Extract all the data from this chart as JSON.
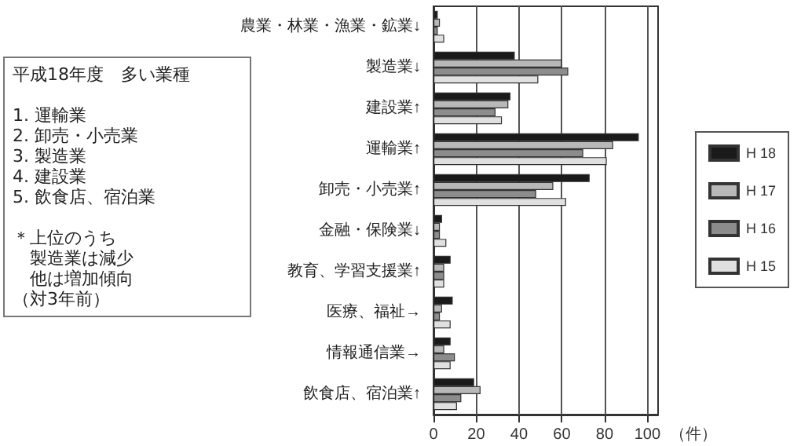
{
  "chart_data": {
    "type": "bar",
    "orientation": "horizontal",
    "xlabel": "（件）",
    "categories": [
      "農業・林業・漁業・鉱業↓",
      "製造業↓",
      "建設業↑",
      "運輸業↑",
      "卸売・小売業↑",
      "金融・保険業↓",
      "教育、学習支援業↑",
      "医療、福祉→",
      "情報通信業→",
      "飲食店、宿泊業↑"
    ],
    "series": [
      {
        "name": "H 18",
        "color": "#1a1a1a",
        "values": [
          2,
          38,
          36,
          96,
          73,
          4,
          8,
          9,
          8,
          19
        ]
      },
      {
        "name": "H 17",
        "color": "#b8b8b8",
        "values": [
          3,
          60,
          35,
          84,
          56,
          3,
          5,
          4,
          5,
          22
        ]
      },
      {
        "name": "H 16",
        "color": "#8c8c8c",
        "values": [
          2,
          63,
          29,
          70,
          48,
          3,
          5,
          3,
          10,
          13
        ]
      },
      {
        "name": "H 15",
        "color": "#e0e0e0",
        "values": [
          5,
          49,
          32,
          81,
          62,
          6,
          5,
          8,
          8,
          11
        ]
      }
    ],
    "xlim": [
      0,
      105
    ],
    "xticks": [
      0,
      20,
      40,
      60,
      80,
      100
    ],
    "grid": "x",
    "legend": "right",
    "annotations": [
      "平成18年度　多い業種",
      "1. 運輸業",
      "2. 卸売・小売業",
      "3. 製造業",
      "4. 建設業",
      "5. 飲食店、宿泊業",
      "＊上位のうち",
      "　製造業は減少",
      "　他は増加傾向",
      "（対3年前）"
    ]
  }
}
